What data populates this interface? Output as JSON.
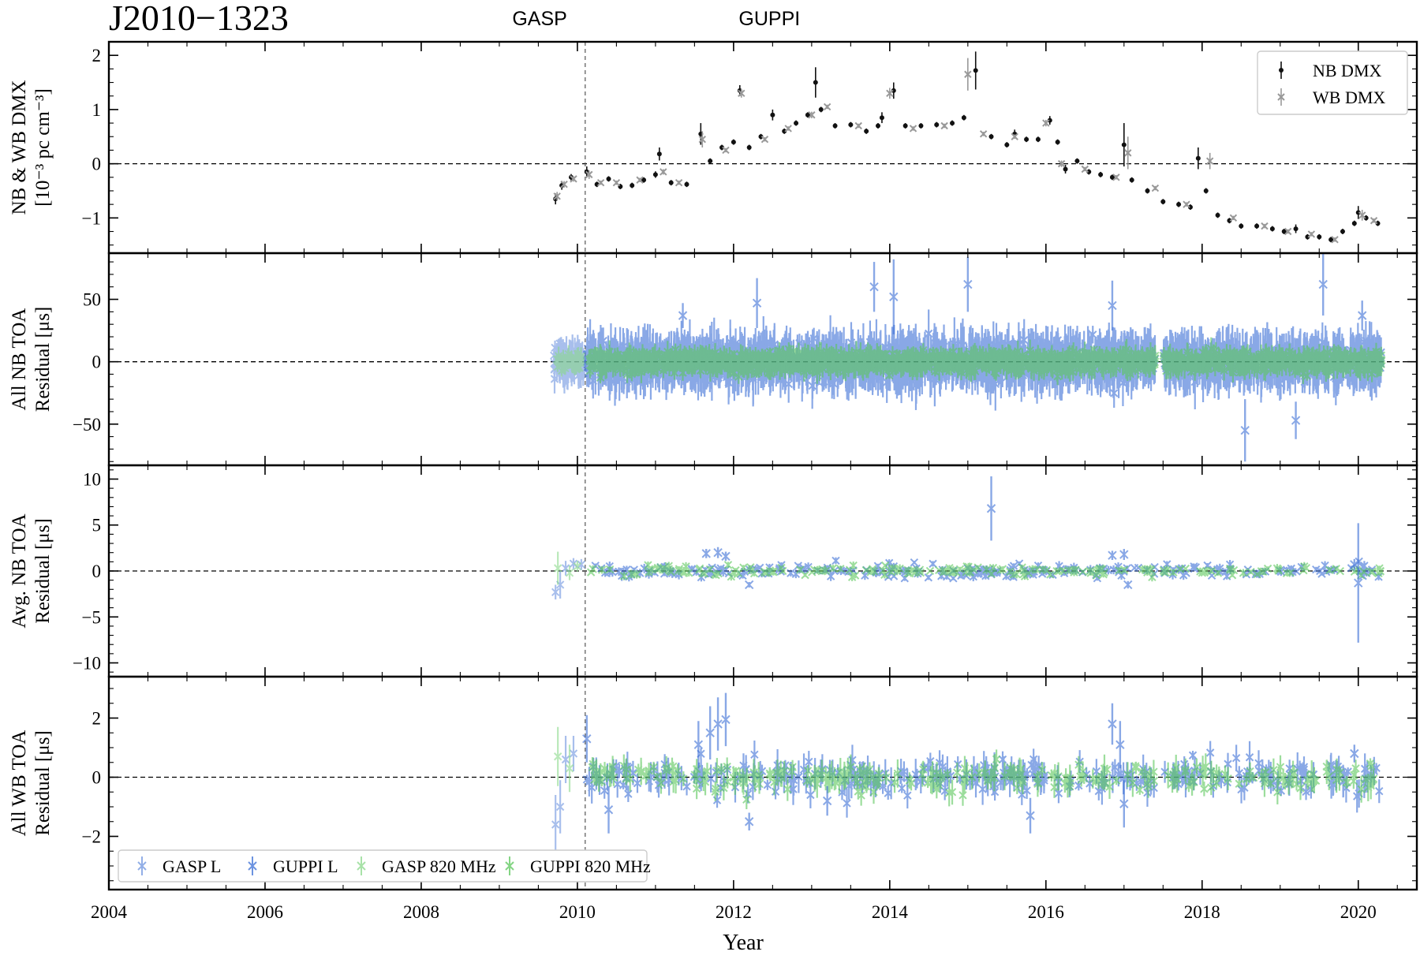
{
  "figure": {
    "title": "J2010−1323",
    "backends": [
      {
        "label": "GASP",
        "year": 2009.55
      },
      {
        "label": "GUPPI",
        "year": 2012.45
      }
    ],
    "backend_switch_year": 2010.1
  },
  "chart_data": [
    {
      "id": "dmx",
      "type": "scatter",
      "ylabel_line1": "NB & WB DMX",
      "ylabel_line2": "[10⁻³ pc cm⁻³]",
      "xlim": [
        2004,
        2020.75
      ],
      "ylim": [
        -1.65,
        2.25
      ],
      "yticks": [
        2,
        1,
        0,
        -1
      ],
      "ytick_labels": [
        "2",
        "1",
        "0",
        "−1"
      ],
      "zero_line": true,
      "legend": {
        "position": "top-right",
        "entries": [
          {
            "label": "NB DMX",
            "color": "#111111",
            "marker": "dot"
          },
          {
            "label": "WB DMX",
            "color": "#999999",
            "marker": "x"
          }
        ]
      },
      "series": [
        {
          "name": "NB DMX",
          "color": "#111111",
          "x": [
            2009.72,
            2009.8,
            2009.92,
            2010.12,
            2010.25,
            2010.4,
            2010.55,
            2010.7,
            2010.85,
            2011.0,
            2011.05,
            2011.2,
            2011.4,
            2011.58,
            2011.7,
            2011.85,
            2012.0,
            2012.08,
            2012.2,
            2012.35,
            2012.5,
            2012.65,
            2012.8,
            2012.95,
            2013.05,
            2013.12,
            2013.3,
            2013.5,
            2013.7,
            2013.85,
            2013.9,
            2014.05,
            2014.2,
            2014.4,
            2014.6,
            2014.8,
            2014.95,
            2015.1,
            2015.3,
            2015.5,
            2015.6,
            2015.75,
            2015.9,
            2016.05,
            2016.15,
            2016.25,
            2016.4,
            2016.55,
            2016.7,
            2016.85,
            2017.0,
            2017.1,
            2017.3,
            2017.5,
            2017.7,
            2017.85,
            2017.95,
            2018.05,
            2018.2,
            2018.35,
            2018.5,
            2018.7,
            2018.9,
            2019.05,
            2019.2,
            2019.35,
            2019.5,
            2019.65,
            2019.8,
            2019.95,
            2020.0,
            2020.1,
            2020.25
          ],
          "y": [
            -0.65,
            -0.4,
            -0.25,
            -0.15,
            -0.38,
            -0.28,
            -0.42,
            -0.4,
            -0.3,
            -0.2,
            0.18,
            -0.35,
            -0.38,
            0.55,
            0.05,
            0.3,
            0.4,
            1.35,
            0.3,
            0.5,
            0.9,
            0.6,
            0.75,
            0.9,
            1.5,
            1.0,
            0.7,
            0.72,
            0.6,
            0.7,
            0.85,
            1.35,
            0.7,
            0.7,
            0.72,
            0.75,
            0.85,
            1.72,
            0.5,
            0.35,
            0.55,
            0.45,
            0.45,
            0.8,
            0.4,
            -0.1,
            0.05,
            -0.15,
            -0.2,
            -0.25,
            0.35,
            -0.3,
            -0.5,
            -0.7,
            -0.75,
            -0.8,
            0.1,
            -0.5,
            -0.95,
            -1.05,
            -1.15,
            -1.15,
            -1.2,
            -1.25,
            -1.2,
            -1.35,
            -1.35,
            -1.4,
            -1.25,
            -1.1,
            -0.9,
            -1.0,
            -1.1
          ],
          "yerr": [
            0.1,
            0.08,
            0.06,
            0.1,
            0.05,
            0.05,
            0.05,
            0.05,
            0.05,
            0.06,
            0.12,
            0.05,
            0.05,
            0.2,
            0.05,
            0.05,
            0.05,
            0.1,
            0.05,
            0.05,
            0.1,
            0.05,
            0.05,
            0.05,
            0.28,
            0.05,
            0.05,
            0.05,
            0.05,
            0.05,
            0.1,
            0.15,
            0.05,
            0.05,
            0.05,
            0.05,
            0.05,
            0.35,
            0.05,
            0.05,
            0.08,
            0.05,
            0.05,
            0.08,
            0.05,
            0.08,
            0.05,
            0.05,
            0.05,
            0.05,
            0.4,
            0.05,
            0.05,
            0.05,
            0.05,
            0.05,
            0.2,
            0.05,
            0.05,
            0.05,
            0.05,
            0.05,
            0.05,
            0.05,
            0.08,
            0.05,
            0.05,
            0.05,
            0.05,
            0.05,
            0.12,
            0.05,
            0.05
          ]
        },
        {
          "name": "WB DMX",
          "color": "#999999",
          "x": [
            2009.74,
            2009.83,
            2009.95,
            2010.15,
            2010.3,
            2010.5,
            2010.8,
            2011.1,
            2011.3,
            2011.6,
            2011.9,
            2012.1,
            2012.4,
            2012.7,
            2013.0,
            2013.2,
            2013.6,
            2014.0,
            2014.3,
            2014.7,
            2015.0,
            2015.2,
            2015.6,
            2016.0,
            2016.2,
            2016.5,
            2016.9,
            2017.05,
            2017.4,
            2017.8,
            2018.1,
            2018.4,
            2018.8,
            2019.1,
            2019.4,
            2019.7,
            2020.05,
            2020.2
          ],
          "y": [
            -0.6,
            -0.38,
            -0.28,
            -0.2,
            -0.35,
            -0.35,
            -0.3,
            -0.15,
            -0.35,
            0.45,
            0.25,
            1.3,
            0.45,
            0.65,
            0.9,
            1.05,
            0.7,
            1.3,
            0.65,
            0.7,
            1.65,
            0.55,
            0.5,
            0.75,
            0.0,
            -0.1,
            -0.25,
            0.2,
            -0.45,
            -0.75,
            0.05,
            -1.0,
            -1.15,
            -1.25,
            -1.3,
            -1.4,
            -0.95,
            -1.05
          ],
          "yerr": [
            0.08,
            0.06,
            0.05,
            0.08,
            0.04,
            0.04,
            0.04,
            0.05,
            0.04,
            0.15,
            0.04,
            0.08,
            0.04,
            0.04,
            0.06,
            0.04,
            0.04,
            0.1,
            0.04,
            0.04,
            0.3,
            0.04,
            0.04,
            0.06,
            0.06,
            0.04,
            0.04,
            0.3,
            0.04,
            0.04,
            0.15,
            0.04,
            0.04,
            0.04,
            0.04,
            0.04,
            0.1,
            0.04
          ]
        }
      ]
    },
    {
      "id": "all-nb",
      "type": "scatter",
      "ylabel_line1": "All NB TOA",
      "ylabel_line2": "Residual [μs]",
      "xlim": [
        2004,
        2020.75
      ],
      "ylim": [
        -83,
        87
      ],
      "yticks": [
        50,
        0,
        -50
      ],
      "ytick_labels": [
        "50",
        "0",
        "−50"
      ],
      "zero_line": true,
      "series": [
        {
          "name": "GASP L",
          "color": "#6F95E0",
          "x_range": [
            2009.7,
            2010.08
          ],
          "n_points": 120,
          "scatter_sigma": 5,
          "err_mean": 10
        },
        {
          "name": "GUPPI L",
          "color": "#3C6FD6",
          "x_range": [
            2010.12,
            2020.3
          ],
          "gaps": [
            [
              2017.4,
              2017.5
            ]
          ],
          "n_points": 2400,
          "scatter_sigma": 6,
          "err_mean": 14
        },
        {
          "name": "GASP 820 MHz",
          "color": "#8BD98B",
          "x_range": [
            2009.72,
            2010.05
          ],
          "n_points": 60,
          "scatter_sigma": 3,
          "err_mean": 5
        },
        {
          "name": "GUPPI 820 MHz",
          "color": "#5CC85C",
          "x_range": [
            2010.15,
            2020.3
          ],
          "gaps": [
            [
              2017.4,
              2017.5
            ]
          ],
          "n_points": 2200,
          "scatter_sigma": 3.5,
          "err_mean": 6
        }
      ],
      "outliers": {
        "x": [
          2011.35,
          2012.3,
          2013.8,
          2014.05,
          2015.0,
          2016.85,
          2019.55,
          2020.05,
          2018.55,
          2019.2
        ],
        "y": [
          37,
          47,
          60,
          52,
          62,
          45,
          62,
          37,
          -55,
          -47
        ],
        "yerr": [
          10,
          20,
          20,
          30,
          22,
          20,
          25,
          12,
          25,
          15
        ]
      }
    },
    {
      "id": "avg-nb",
      "type": "scatter",
      "ylabel_line1": "Avg. NB TOA",
      "ylabel_line2": "Residual [μs]",
      "xlim": [
        2004,
        2020.75
      ],
      "ylim": [
        -11.5,
        11.5
      ],
      "yticks": [
        10,
        5,
        0,
        -5,
        -10
      ],
      "ytick_labels": [
        "10",
        "5",
        "0",
        "−5",
        "−10"
      ],
      "zero_line": true,
      "series": [
        {
          "name": "GASP L",
          "color": "#6F95E0",
          "x": [
            2009.72,
            2009.78,
            2009.85,
            2009.95,
            2010.05
          ],
          "y": [
            -2.3,
            -1.5,
            0.3,
            0.8,
            0.7
          ],
          "yerr": [
            0.8,
            1.5,
            0.8,
            0.6,
            0.6
          ]
        },
        {
          "name": "GUPPI L",
          "color": "#3C6FD6",
          "x_range": [
            2010.12,
            2020.3
          ],
          "gaps": [
            [
              2017.4,
              2017.5
            ]
          ],
          "n_points": 220,
          "scatter_sigma": 0.4,
          "err_mean": 0.35
        },
        {
          "name": "GASP 820 MHz",
          "color": "#8BD98B",
          "x": [
            2009.75,
            2009.9,
            2010.0
          ],
          "y": [
            0.3,
            -0.2,
            0.5
          ],
          "yerr": [
            1.8,
            0.8,
            0.6
          ]
        },
        {
          "name": "GUPPI 820 MHz",
          "color": "#5CC85C",
          "x_range": [
            2010.15,
            2020.3
          ],
          "gaps": [
            [
              2017.4,
              2017.5
            ]
          ],
          "n_points": 200,
          "scatter_sigma": 0.25,
          "err_mean": 0.3
        }
      ],
      "outliers": {
        "x": [
          2015.3,
          2011.65,
          2011.8,
          2011.9,
          2012.2,
          2016.85,
          2017.0,
          2017.05,
          2019.95,
          2020.0
        ],
        "y": [
          6.8,
          1.9,
          2.0,
          1.6,
          -1.5,
          1.7,
          1.8,
          -1.5,
          0.7,
          -1.3
        ],
        "yerr": [
          3.5,
          0.5,
          0.6,
          0.5,
          0.3,
          0.5,
          0.6,
          0.4,
          0.6,
          6.5
        ]
      }
    },
    {
      "id": "all-wb",
      "type": "scatter",
      "ylabel_line1": "All WB TOA",
      "ylabel_line2": "Residual [μs]",
      "xlim": [
        2004,
        2020.75
      ],
      "ylim": [
        -3.8,
        3.4
      ],
      "yticks": [
        2,
        0,
        -2
      ],
      "ytick_labels": [
        "2",
        "0",
        "−2"
      ],
      "zero_line": true,
      "legend": {
        "position": "lower-left",
        "entries": [
          {
            "label": "GASP L",
            "color": "#6F95E0"
          },
          {
            "label": "GUPPI L",
            "color": "#3C6FD6"
          },
          {
            "label": "GASP 820 MHz",
            "color": "#8BD98B"
          },
          {
            "label": "GUPPI 820 MHz",
            "color": "#5CC85C"
          }
        ]
      },
      "series": [
        {
          "name": "GASP L",
          "color": "#6F95E0",
          "x": [
            2009.72,
            2009.78,
            2009.85,
            2009.95
          ],
          "y": [
            -1.6,
            -1.0,
            0.6,
            0.8
          ],
          "yerr": [
            1.0,
            0.9,
            0.8,
            0.6
          ]
        },
        {
          "name": "GUPPI L",
          "color": "#3C6FD6",
          "x_range": [
            2010.12,
            2020.3
          ],
          "gaps": [
            [
              2017.4,
              2017.5
            ]
          ],
          "n_points": 320,
          "scatter_sigma": 0.28,
          "err_mean": 0.35
        },
        {
          "name": "GASP 820 MHz",
          "color": "#8BD98B",
          "x": [
            2009.75,
            2009.9
          ],
          "y": [
            0.7,
            0.3
          ],
          "yerr": [
            1.0,
            0.8
          ]
        },
        {
          "name": "GUPPI 820 MHz",
          "color": "#5CC85C",
          "x_range": [
            2010.15,
            2020.3
          ],
          "gaps": [
            [
              2017.4,
              2017.5
            ]
          ],
          "n_points": 300,
          "scatter_sigma": 0.22,
          "err_mean": 0.3
        }
      ],
      "outliers": {
        "x": [
          2010.12,
          2011.55,
          2011.7,
          2011.8,
          2011.9,
          2012.2,
          2013.2,
          2015.8,
          2016.85,
          2016.95,
          2017.0,
          2019.95,
          2010.4
        ],
        "y": [
          1.3,
          1.1,
          1.5,
          1.8,
          1.95,
          -1.5,
          -0.8,
          -1.3,
          1.8,
          1.1,
          -0.9,
          0.8,
          -1.1
        ],
        "yerr": [
          0.8,
          0.8,
          0.9,
          0.9,
          0.9,
          0.3,
          0.5,
          0.6,
          0.7,
          0.8,
          0.8,
          0.3,
          0.8
        ]
      }
    }
  ],
  "xaxis": {
    "label": "Year",
    "ticks": [
      2004,
      2006,
      2008,
      2010,
      2012,
      2014,
      2016,
      2018,
      2020
    ],
    "tick_labels": [
      "2004",
      "2006",
      "2008",
      "2010",
      "2012",
      "2014",
      "2016",
      "2018",
      "2020"
    ]
  }
}
